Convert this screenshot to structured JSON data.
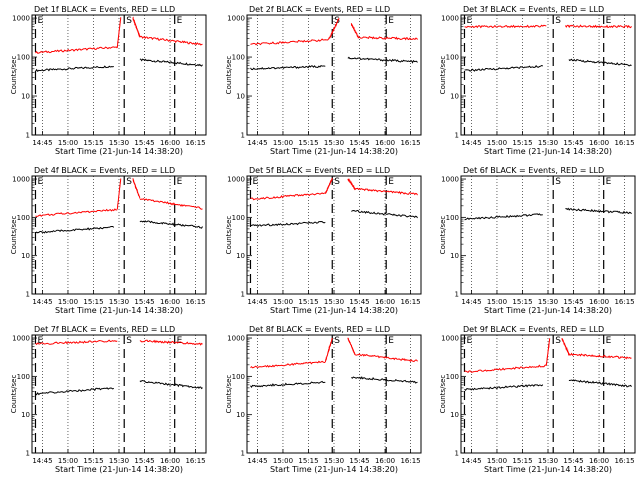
{
  "chart_data": [
    {
      "type": "line",
      "title": "Det 1f BLACK = Events, RED = LLD",
      "xlabel": "Start Time (21-Jun-14 14:38:20)",
      "ylabel": "Counts/sec",
      "x_ticks": [
        "14:45",
        "15:00",
        "15:15",
        "15:30",
        "15:45",
        "16:00",
        "16:15"
      ],
      "y_ticks": [
        "1",
        "10",
        "100",
        "1000"
      ],
      "ylim": [
        1,
        1200
      ],
      "yscale": "log",
      "markers": [
        {
          "label": "E",
          "x": 0.02
        },
        {
          "label": "S",
          "x": 0.53
        },
        {
          "label": "E",
          "x": 0.82
        }
      ],
      "series": [
        {
          "name": "Events",
          "color": "#000000",
          "segments": [
            {
              "x": [
                0.02,
                0.47
              ],
              "y": [
                45,
                58
              ]
            },
            {
              "x": [
                0.62,
                0.98
              ],
              "y": [
                85,
                62
              ]
            }
          ]
        },
        {
          "name": "LLD",
          "color": "#ff0000",
          "segments": [
            {
              "x": [
                0.02,
                0.49
              ],
              "y": [
                130,
                180
              ]
            },
            {
              "x": [
                0.49,
                0.51
              ],
              "y": [
                180,
                1000
              ]
            },
            {
              "x": [
                0.58,
                0.62
              ],
              "y": [
                1000,
                330
              ]
            },
            {
              "x": [
                0.62,
                0.98
              ],
              "y": [
                330,
                210
              ]
            }
          ]
        }
      ]
    },
    {
      "type": "line",
      "title": "Det 2f BLACK = Events, RED = LLD",
      "xlabel": "Start Time (21-Jun-14 14:38:20)",
      "ylabel": "Counts/sec",
      "x_ticks": [
        "14:45",
        "15:00",
        "15:15",
        "15:30",
        "15:45",
        "16:00",
        "16:15"
      ],
      "y_ticks": [
        "1",
        "10",
        "100",
        "1000"
      ],
      "ylim": [
        1,
        1200
      ],
      "yscale": "log",
      "markers": [
        {
          "label": "S",
          "x": 0.49
        },
        {
          "label": "E",
          "x": 0.8
        }
      ],
      "series": [
        {
          "name": "Events",
          "color": "#000000",
          "segments": [
            {
              "x": [
                0.02,
                0.45
              ],
              "y": [
                50,
                58
              ]
            },
            {
              "x": [
                0.58,
                0.98
              ],
              "y": [
                95,
                75
              ]
            }
          ]
        },
        {
          "name": "LLD",
          "color": "#ff0000",
          "segments": [
            {
              "x": [
                0.02,
                0.47
              ],
              "y": [
                210,
                280
              ]
            },
            {
              "x": [
                0.47,
                0.53
              ],
              "y": [
                280,
                1000
              ]
            },
            {
              "x": [
                0.6,
                0.64
              ],
              "y": [
                700,
                320
              ]
            },
            {
              "x": [
                0.64,
                0.98
              ],
              "y": [
                320,
                290
              ]
            }
          ]
        }
      ]
    },
    {
      "type": "line",
      "title": "Det 3f BLACK = Events, RED = LLD",
      "xlabel": "Start Time (21-Jun-14 14:38:20)",
      "ylabel": "Counts/sec",
      "x_ticks": [
        "14:45",
        "15:00",
        "15:15",
        "15:30",
        "15:45",
        "16:00",
        "16:15"
      ],
      "y_ticks": [
        "1",
        "10",
        "100",
        "1000"
      ],
      "ylim": [
        1,
        1200
      ],
      "yscale": "log",
      "markers": [
        {
          "label": "E",
          "x": 0.02
        },
        {
          "label": "S",
          "x": 0.53
        },
        {
          "label": "E",
          "x": 0.82
        }
      ],
      "series": [
        {
          "name": "Events",
          "color": "#000000",
          "segments": [
            {
              "x": [
                0.02,
                0.47
              ],
              "y": [
                45,
                58
              ]
            },
            {
              "x": [
                0.62,
                0.98
              ],
              "y": [
                85,
                62
              ]
            }
          ]
        },
        {
          "name": "LLD",
          "color": "#ff0000",
          "segments": [
            {
              "x": [
                0.02,
                0.49
              ],
              "y": [
                600,
                620
              ]
            },
            {
              "x": [
                0.6,
                0.98
              ],
              "y": [
                620,
                600
              ]
            }
          ]
        }
      ]
    },
    {
      "type": "line",
      "title": "Det 4f BLACK = Events, RED = LLD",
      "xlabel": "Start Time (21-Jun-14 14:38:20)",
      "ylabel": "Counts/sec",
      "x_ticks": [
        "14:45",
        "15:00",
        "15:15",
        "15:30",
        "15:45",
        "16:00",
        "16:15"
      ],
      "y_ticks": [
        "1",
        "10",
        "100",
        "1000"
      ],
      "ylim": [
        1,
        1200
      ],
      "yscale": "log",
      "markers": [
        {
          "label": "E",
          "x": 0.02
        },
        {
          "label": "S",
          "x": 0.53
        },
        {
          "label": "E",
          "x": 0.82
        }
      ],
      "series": [
        {
          "name": "Events",
          "color": "#000000",
          "segments": [
            {
              "x": [
                0.02,
                0.47
              ],
              "y": [
                40,
                55
              ]
            },
            {
              "x": [
                0.62,
                0.98
              ],
              "y": [
                80,
                55
              ]
            }
          ]
        },
        {
          "name": "LLD",
          "color": "#ff0000",
          "segments": [
            {
              "x": [
                0.02,
                0.49
              ],
              "y": [
                110,
                160
              ]
            },
            {
              "x": [
                0.49,
                0.51
              ],
              "y": [
                160,
                1000
              ]
            },
            {
              "x": [
                0.58,
                0.62
              ],
              "y": [
                1000,
                310
              ]
            },
            {
              "x": [
                0.62,
                0.98
              ],
              "y": [
                310,
                170
              ]
            }
          ]
        }
      ]
    },
    {
      "type": "line",
      "title": "Det 5f BLACK = Events, RED = LLD",
      "xlabel": "Start Time (21-Jun-14 14:38:20)",
      "ylabel": "Counts/sec",
      "x_ticks": [
        "14:45",
        "15:00",
        "15:15",
        "15:30",
        "15:45",
        "16:00",
        "16:15"
      ],
      "y_ticks": [
        "1",
        "10",
        "100",
        "1000"
      ],
      "ylim": [
        1,
        1200
      ],
      "yscale": "log",
      "markers": [
        {
          "label": "E",
          "x": 0.02
        },
        {
          "label": "S",
          "x": 0.49
        },
        {
          "label": "E",
          "x": 0.8
        }
      ],
      "series": [
        {
          "name": "Events",
          "color": "#000000",
          "segments": [
            {
              "x": [
                0.02,
                0.45
              ],
              "y": [
                60,
                75
              ]
            },
            {
              "x": [
                0.6,
                0.98
              ],
              "y": [
                150,
                100
              ]
            }
          ]
        },
        {
          "name": "LLD",
          "color": "#ff0000",
          "segments": [
            {
              "x": [
                0.02,
                0.45
              ],
              "y": [
                300,
                420
              ]
            },
            {
              "x": [
                0.45,
                0.49
              ],
              "y": [
                420,
                1000
              ]
            },
            {
              "x": [
                0.58,
                0.62
              ],
              "y": [
                1000,
                550
              ]
            },
            {
              "x": [
                0.62,
                0.98
              ],
              "y": [
                550,
                400
              ]
            }
          ]
        }
      ]
    },
    {
      "type": "line",
      "title": "Det 6f BLACK = Events, RED = LLD",
      "xlabel": "Start Time (21-Jun-14 14:38:20)",
      "ylabel": "Counts/sec",
      "x_ticks": [
        "14:45",
        "15:00",
        "15:15",
        "15:30",
        "15:45",
        "16:00",
        "16:15"
      ],
      "y_ticks": [
        "1",
        "10",
        "100",
        "1000"
      ],
      "ylim": [
        1,
        1200
      ],
      "yscale": "log",
      "markers": [
        {
          "label": "S",
          "x": 0.53
        },
        {
          "label": "E",
          "x": 0.82
        }
      ],
      "series": [
        {
          "name": "Events",
          "color": "#000000",
          "segments": [
            {
              "x": [
                0.02,
                0.47
              ],
              "y": [
                90,
                120
              ]
            },
            {
              "x": [
                0.6,
                0.98
              ],
              "y": [
                165,
                130
              ]
            }
          ]
        }
      ]
    },
    {
      "type": "line",
      "title": "Det 7f BLACK = Events, RED = LLD",
      "xlabel": "Start Time (21-Jun-14 14:38:20)",
      "ylabel": "Counts/sec",
      "x_ticks": [
        "14:45",
        "15:00",
        "15:15",
        "15:30",
        "15:45",
        "16:00",
        "16:15"
      ],
      "y_ticks": [
        "1",
        "10",
        "100",
        "1000"
      ],
      "ylim": [
        1,
        1200
      ],
      "yscale": "log",
      "markers": [
        {
          "label": "E",
          "x": 0.02
        },
        {
          "label": "S",
          "x": 0.53
        },
        {
          "label": "E",
          "x": 0.82
        }
      ],
      "series": [
        {
          "name": "Events",
          "color": "#000000",
          "segments": [
            {
              "x": [
                0.02,
                0.47
              ],
              "y": [
                35,
                50
              ]
            },
            {
              "x": [
                0.62,
                0.98
              ],
              "y": [
                75,
                50
              ]
            }
          ]
        },
        {
          "name": "LLD",
          "color": "#ff0000",
          "segments": [
            {
              "x": [
                0.02,
                0.49
              ],
              "y": [
                700,
                850
              ]
            },
            {
              "x": [
                0.62,
                0.98
              ],
              "y": [
                850,
                700
              ]
            }
          ]
        }
      ]
    },
    {
      "type": "line",
      "title": "Det 8f BLACK = Events, RED = LLD",
      "xlabel": "Start Time (21-Jun-14 14:38:20)",
      "ylabel": "Counts/sec",
      "x_ticks": [
        "14:45",
        "15:00",
        "15:15",
        "15:30",
        "15:45",
        "16:00",
        "16:15"
      ],
      "y_ticks": [
        "1",
        "10",
        "100",
        "1000"
      ],
      "ylim": [
        1,
        1200
      ],
      "yscale": "log",
      "markers": [
        {
          "label": "S",
          "x": 0.49
        },
        {
          "label": "E",
          "x": 0.8
        }
      ],
      "series": [
        {
          "name": "Events",
          "color": "#000000",
          "segments": [
            {
              "x": [
                0.02,
                0.45
              ],
              "y": [
                55,
                70
              ]
            },
            {
              "x": [
                0.6,
                0.98
              ],
              "y": [
                95,
                70
              ]
            }
          ]
        },
        {
          "name": "LLD",
          "color": "#ff0000",
          "segments": [
            {
              "x": [
                0.02,
                0.45
              ],
              "y": [
                170,
                240
              ]
            },
            {
              "x": [
                0.45,
                0.49
              ],
              "y": [
                240,
                1000
              ]
            },
            {
              "x": [
                0.58,
                0.62
              ],
              "y": [
                1000,
                380
              ]
            },
            {
              "x": [
                0.62,
                0.98
              ],
              "y": [
                380,
                250
              ]
            }
          ]
        }
      ]
    },
    {
      "type": "line",
      "title": "Det 9f BLACK = Events, RED = LLD",
      "xlabel": "Start Time (21-Jun-14 14:38:20)",
      "ylabel": "Counts/sec",
      "x_ticks": [
        "14:45",
        "15:00",
        "15:15",
        "15:30",
        "15:45",
        "16:00",
        "16:15"
      ],
      "y_ticks": [
        "1",
        "10",
        "100",
        "1000"
      ],
      "ylim": [
        1,
        1200
      ],
      "yscale": "log",
      "markers": [
        {
          "label": "E",
          "x": 0.02
        },
        {
          "label": "S",
          "x": 0.53
        },
        {
          "label": "E",
          "x": 0.82
        }
      ],
      "series": [
        {
          "name": "Events",
          "color": "#000000",
          "segments": [
            {
              "x": [
                0.02,
                0.47
              ],
              "y": [
                45,
                60
              ]
            },
            {
              "x": [
                0.62,
                0.98
              ],
              "y": [
                80,
                55
              ]
            }
          ]
        },
        {
          "name": "LLD",
          "color": "#ff0000",
          "segments": [
            {
              "x": [
                0.02,
                0.49
              ],
              "y": [
                130,
                190
              ]
            },
            {
              "x": [
                0.49,
                0.51
              ],
              "y": [
                190,
                1000
              ]
            },
            {
              "x": [
                0.58,
                0.62
              ],
              "y": [
                1000,
                380
              ]
            },
            {
              "x": [
                0.62,
                0.98
              ],
              "y": [
                380,
                300
              ]
            }
          ]
        }
      ]
    }
  ]
}
